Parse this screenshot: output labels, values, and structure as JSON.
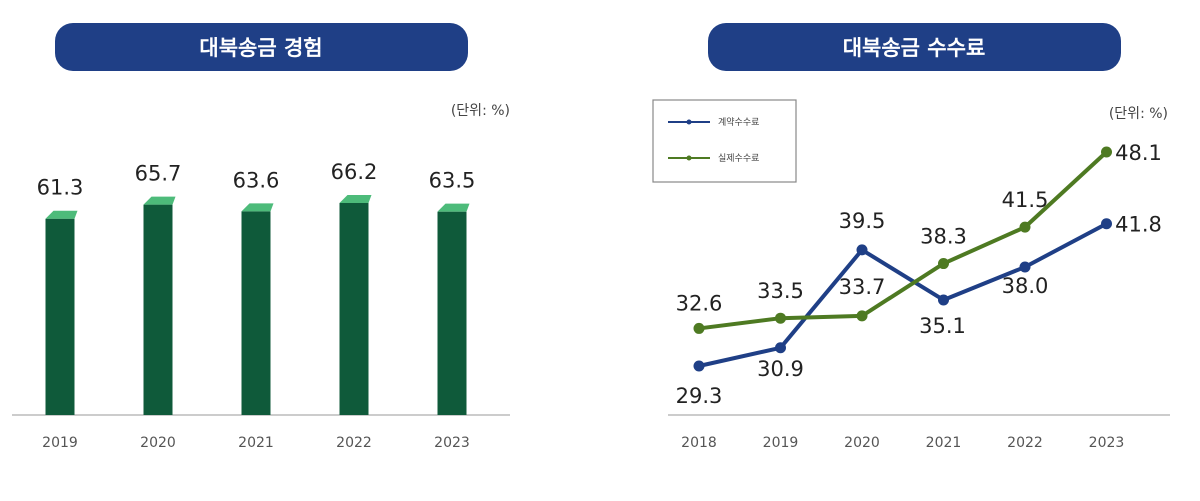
{
  "left": {
    "title": "대북송금 경험",
    "unit": "(단위: %)"
  },
  "right": {
    "title": "대북송금 수수료",
    "unit": "(단위: %)"
  },
  "colors": {
    "title_bg": "#1f3f86",
    "bar": "#0f5a3a",
    "bar_top": "#4dbb7a",
    "series_blue": "#1f3f86",
    "series_green": "#4e7a22"
  },
  "chart_data": [
    {
      "type": "bar",
      "title": "대북송금 경험",
      "unit": "(단위: %)",
      "categories": [
        "2019",
        "2020",
        "2021",
        "2022",
        "2023"
      ],
      "values": [
        61.3,
        65.7,
        63.6,
        66.2,
        63.5
      ],
      "ylim": [
        0,
        80
      ],
      "grid": false
    },
    {
      "type": "line",
      "title": "대북송금 수수료",
      "unit": "(단위: %)",
      "x": [
        "2018",
        "2019",
        "2020",
        "2021",
        "2022",
        "2023"
      ],
      "ylim": [
        20,
        50
      ],
      "legend": "top-left",
      "grid": false,
      "series": [
        {
          "name": "계약수수료",
          "color": "#1f3f86",
          "values": [
            29.3,
            30.9,
            39.5,
            35.1,
            38.0,
            41.8
          ]
        },
        {
          "name": "실제수수료",
          "color": "#4e7a22",
          "values": [
            32.6,
            33.5,
            33.7,
            38.3,
            41.5,
            48.1
          ]
        }
      ]
    }
  ]
}
